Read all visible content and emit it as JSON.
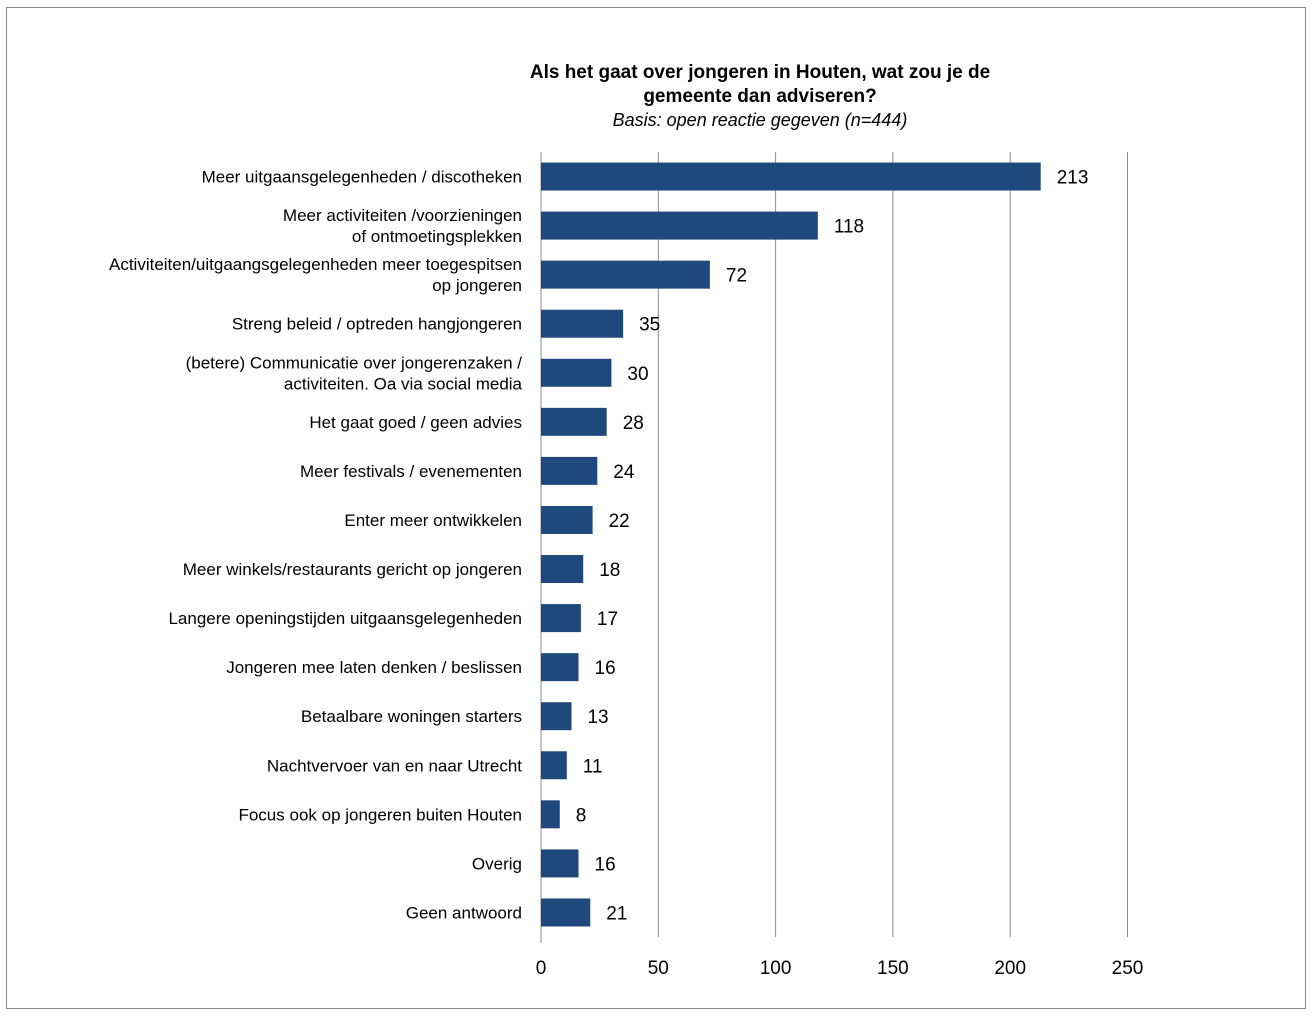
{
  "chart_data": {
    "type": "bar",
    "orientation": "horizontal",
    "title_lines": [
      "Als het gaat over jongeren in Houten, wat zou je de",
      "gemeente dan adviseren?"
    ],
    "subtitle": "Basis: open reactie gegeven (n=444)",
    "categories": [
      [
        "Meer uitgaansgelegenheden / discotheken"
      ],
      [
        "Meer activiteiten /voorzieningen",
        "of ontmoetingsplekken"
      ],
      [
        "Activiteiten/uitgaangsgelegenheden meer toegespitsen",
        "op jongeren"
      ],
      [
        "Streng beleid / optreden hangjongeren"
      ],
      [
        "(betere) Communicatie over jongerenzaken /",
        "activiteiten. Oa via social media"
      ],
      [
        "Het gaat goed / geen advies"
      ],
      [
        "Meer festivals / evenementen"
      ],
      [
        "Enter meer ontwikkelen"
      ],
      [
        "Meer winkels/restaurants gericht op jongeren"
      ],
      [
        "Langere openingstijden uitgaansgelegenheden"
      ],
      [
        "Jongeren mee laten denken / beslissen"
      ],
      [
        "Betaalbare woningen starters"
      ],
      [
        "Nachtvervoer van en naar Utrecht"
      ],
      [
        "Focus ook op jongeren buiten Houten"
      ],
      [
        "Overig"
      ],
      [
        "Geen antwoord"
      ]
    ],
    "values": [
      213,
      118,
      72,
      35,
      30,
      28,
      24,
      22,
      18,
      17,
      16,
      13,
      11,
      8,
      16,
      21
    ],
    "xlim": [
      0,
      250
    ],
    "xticks": [
      0,
      50,
      100,
      150,
      200,
      250
    ],
    "grid": true,
    "bar_color": "#1f497d",
    "grid_color": "#8c8c8c"
  }
}
